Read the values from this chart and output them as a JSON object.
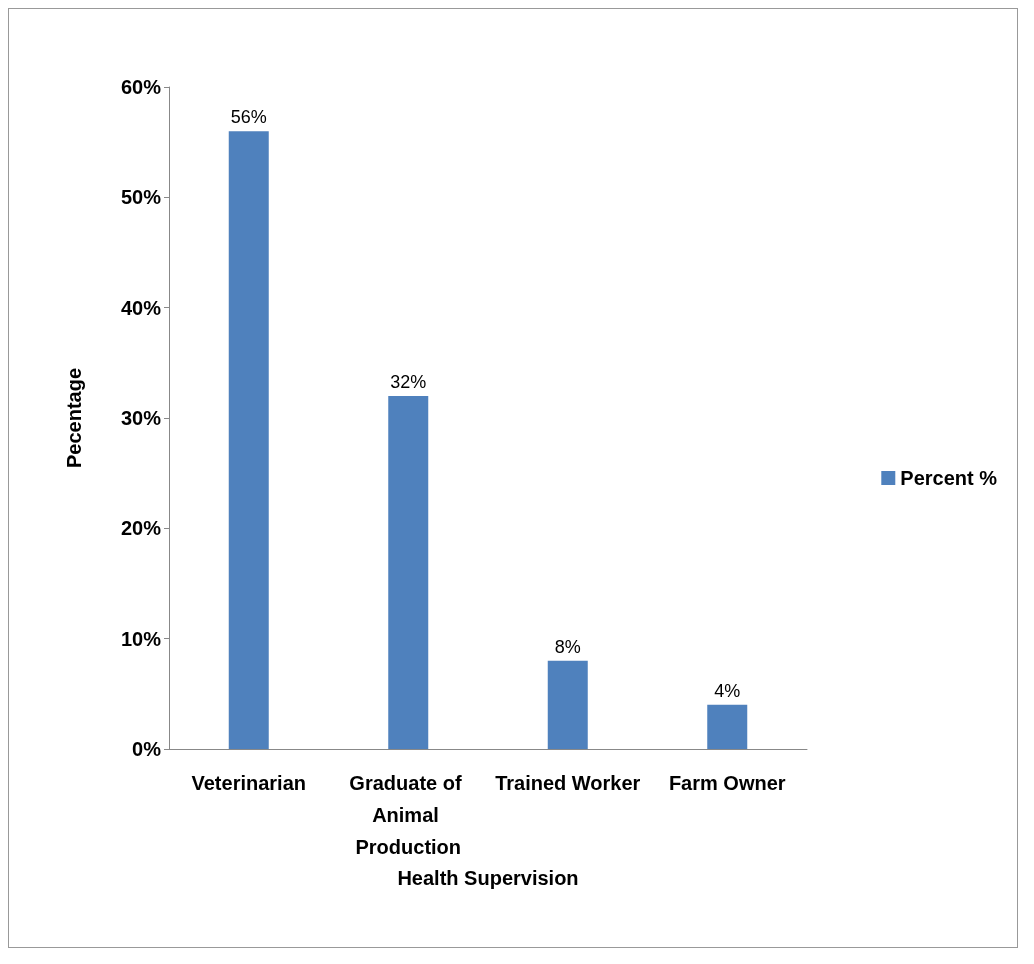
{
  "chart_data": {
    "type": "bar",
    "xlabel": "Health Supervision",
    "ylabel": "Pecentage",
    "categories": [
      "Veterinarian",
      "Graduate of Animal Production",
      "Trained Worker",
      "Farm Owner"
    ],
    "series": [
      {
        "name": "Percent %",
        "color": "#4f81bd",
        "values": [
          56,
          32,
          8,
          4
        ],
        "value_labels": [
          "56%",
          "32%",
          "8%",
          "4%"
        ]
      }
    ],
    "ylim": [
      0,
      60
    ],
    "yticks": [
      {
        "value": 0,
        "label": "0%"
      },
      {
        "value": 10,
        "label": "10%"
      },
      {
        "value": 20,
        "label": "20%"
      },
      {
        "value": 30,
        "label": "30%"
      },
      {
        "value": 40,
        "label": "40%"
      },
      {
        "value": 50,
        "label": "50%"
      },
      {
        "value": 60,
        "label": "60%"
      }
    ],
    "grid": false,
    "legend": "right"
  }
}
